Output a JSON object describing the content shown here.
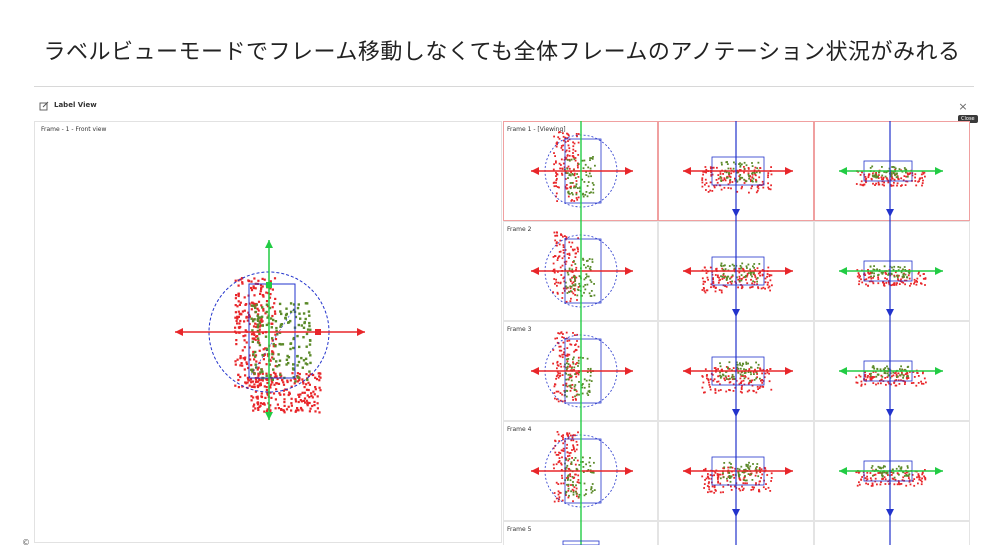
{
  "headline": "ラベルビューモードでフレーム移動しなくても全体フレームのアノテーション状況がみれる",
  "dialog": {
    "title": "Label View",
    "close_label": "×",
    "close_tooltip": "Close"
  },
  "front_panel": {
    "label": "Frame - 1 - Front view"
  },
  "frames": [
    {
      "label": "Frame 1 - [Viewing]"
    },
    {
      "label": "Frame 2"
    },
    {
      "label": "Frame 3"
    },
    {
      "label": "Frame 4"
    },
    {
      "label": "Frame 5"
    }
  ],
  "copyright": "©",
  "colors": {
    "points_red": "#e8262a",
    "points_green": "#5b8a2a",
    "gizmo_red": "#e8262a",
    "gizmo_green": "#22cc44",
    "gizmo_blue": "#2233cc",
    "selected_border": "#f0a0a0"
  },
  "icons": {
    "edit": "edit-icon",
    "close": "close-icon"
  }
}
